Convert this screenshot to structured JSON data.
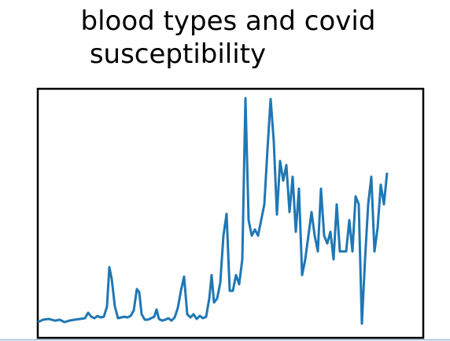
{
  "chart_data": {
    "type": "line",
    "title": "blood types and covid susceptibility",
    "x": [
      0,
      7,
      14,
      22,
      28,
      34,
      40,
      47,
      54,
      60,
      64,
      68,
      72,
      76,
      80,
      84,
      88,
      91,
      94,
      98,
      102,
      106,
      110,
      114,
      118,
      122,
      126,
      129,
      132,
      136,
      140,
      144,
      148,
      151,
      154,
      158,
      162,
      166,
      170,
      174,
      178,
      182,
      186,
      190,
      194,
      198,
      202,
      206,
      210,
      214,
      218,
      221,
      224,
      228,
      232,
      236,
      240,
      244,
      248,
      252,
      256,
      260,
      264,
      268,
      272,
      276,
      280,
      284,
      288,
      292,
      296,
      300,
      304,
      308,
      312,
      316,
      320,
      324,
      328,
      332,
      336,
      340,
      344,
      348,
      352,
      356,
      360,
      364,
      368,
      372,
      376,
      380,
      384,
      388,
      392,
      396,
      400,
      404,
      408,
      412,
      416,
      420,
      424,
      428,
      432,
      436,
      440,
      444
    ],
    "values": [
      6.3,
      7.3,
      7.6,
      6.9,
      7.3,
      6.3,
      6.9,
      7.3,
      7.6,
      7.9,
      10.1,
      8.5,
      7.9,
      8.8,
      8.2,
      8.5,
      12.6,
      28.4,
      23.7,
      12.6,
      7.9,
      8.2,
      8.5,
      8.2,
      8.8,
      11.0,
      19.6,
      18.3,
      9.5,
      7.3,
      7.3,
      7.9,
      8.5,
      11.4,
      7.6,
      6.9,
      7.3,
      7.9,
      6.9,
      8.2,
      12.0,
      18.9,
      24.6,
      9.5,
      8.2,
      9.5,
      7.6,
      8.8,
      7.9,
      8.5,
      15.8,
      25.2,
      14.2,
      15.8,
      22.1,
      41.0,
      49.8,
      18.9,
      18.9,
      25.2,
      21.5,
      31.5,
      96.2,
      47.3,
      41.0,
      43.5,
      41.0,
      47.3,
      53.6,
      75.7,
      95.9,
      78.9,
      49.5,
      71.0,
      63.1,
      69.4,
      50.5,
      64.7,
      42.6,
      59.9,
      25.2,
      31.5,
      41.0,
      50.5,
      41.0,
      34.7,
      59.9,
      41.0,
      37.9,
      42.6,
      31.5,
      53.6,
      34.7,
      34.7,
      34.7,
      47.3,
      34.7,
      56.8,
      53.6,
      5.7,
      31.5,
      53.6,
      64.7,
      34.7,
      44.2,
      61.5,
      53.6,
      66.3
    ],
    "color": "#1f77b4",
    "xlim": [
      0,
      490
    ],
    "ylim": [
      0,
      100
    ]
  }
}
